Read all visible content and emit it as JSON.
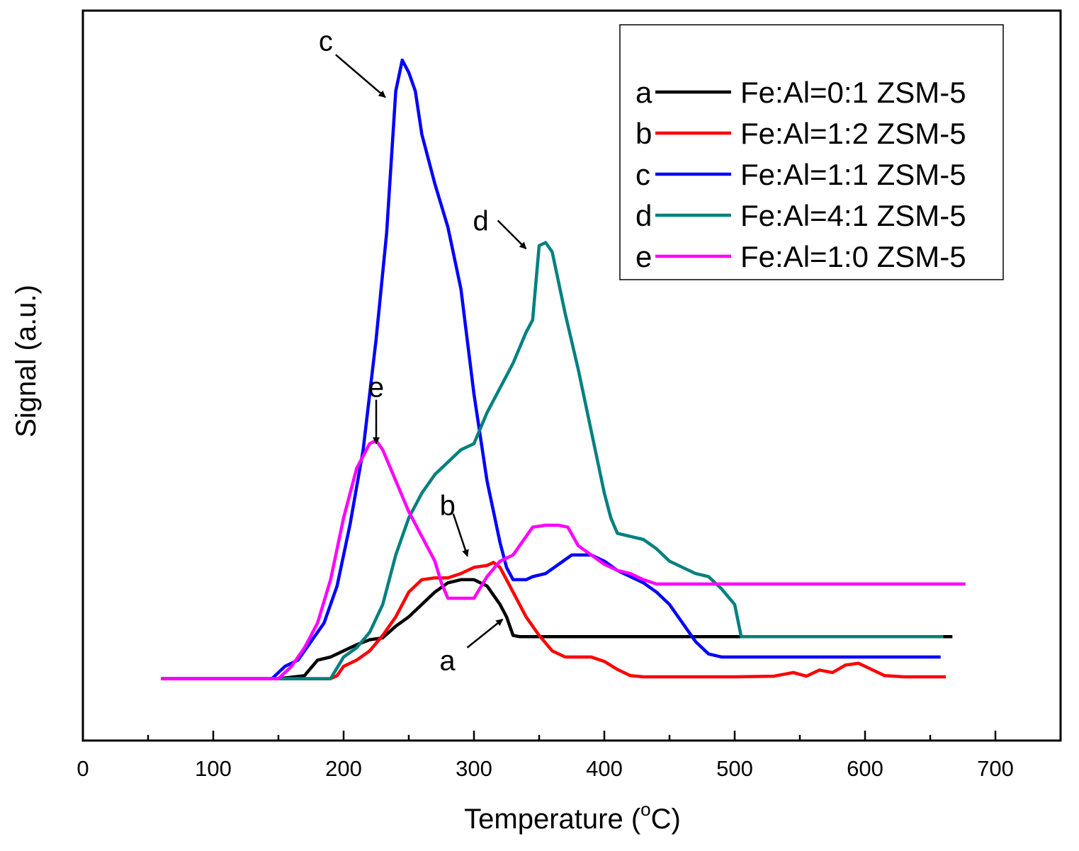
{
  "chart_data": {
    "type": "line",
    "title": "",
    "xlabel": "Temperature (",
    "xlabel_sup": "o",
    "xlabel_unit": "C)",
    "ylabel": "Signal (a.u.)",
    "xlim": [
      0,
      750
    ],
    "ylim": [
      -0.1,
      1.08
    ],
    "xticks": [
      0,
      100,
      200,
      300,
      400,
      500,
      600,
      700
    ],
    "xtick_labels": [
      "0",
      "100",
      "200",
      "300",
      "400",
      "500",
      "600",
      "700"
    ],
    "yticks_shown": false,
    "legend_position": "top-right",
    "series": [
      {
        "key": "a",
        "name": "Fe:Al=0:1 ZSM-5",
        "color": "#000000",
        "points": [
          [
            60,
            0.0
          ],
          [
            150,
            0.0
          ],
          [
            170,
            0.005
          ],
          [
            180,
            0.03
          ],
          [
            190,
            0.035
          ],
          [
            200,
            0.045
          ],
          [
            210,
            0.055
          ],
          [
            220,
            0.063
          ],
          [
            230,
            0.066
          ],
          [
            240,
            0.085
          ],
          [
            250,
            0.1
          ],
          [
            260,
            0.12
          ],
          [
            270,
            0.14
          ],
          [
            280,
            0.155
          ],
          [
            290,
            0.16
          ],
          [
            300,
            0.16
          ],
          [
            310,
            0.15
          ],
          [
            320,
            0.12
          ],
          [
            325,
            0.1
          ],
          [
            330,
            0.07
          ],
          [
            335,
            0.068
          ],
          [
            350,
            0.068
          ],
          [
            400,
            0.068
          ],
          [
            500,
            0.068
          ],
          [
            600,
            0.068
          ],
          [
            667,
            0.068
          ]
        ]
      },
      {
        "key": "b",
        "name": "Fe:Al=1:2 ZSM-5",
        "color": "#ff0000",
        "points": [
          [
            60,
            0.0
          ],
          [
            190,
            0.0
          ],
          [
            195,
            0.005
          ],
          [
            200,
            0.02
          ],
          [
            210,
            0.03
          ],
          [
            220,
            0.045
          ],
          [
            230,
            0.07
          ],
          [
            240,
            0.1
          ],
          [
            250,
            0.14
          ],
          [
            260,
            0.16
          ],
          [
            270,
            0.163
          ],
          [
            280,
            0.163
          ],
          [
            290,
            0.17
          ],
          [
            300,
            0.18
          ],
          [
            310,
            0.183
          ],
          [
            315,
            0.188
          ],
          [
            320,
            0.18
          ],
          [
            325,
            0.16
          ],
          [
            330,
            0.14
          ],
          [
            340,
            0.1
          ],
          [
            350,
            0.07
          ],
          [
            360,
            0.045
          ],
          [
            370,
            0.035
          ],
          [
            380,
            0.035
          ],
          [
            390,
            0.035
          ],
          [
            400,
            0.028
          ],
          [
            410,
            0.015
          ],
          [
            420,
            0.005
          ],
          [
            430,
            0.003
          ],
          [
            450,
            0.003
          ],
          [
            500,
            0.003
          ],
          [
            530,
            0.004
          ],
          [
            545,
            0.01
          ],
          [
            555,
            0.004
          ],
          [
            565,
            0.014
          ],
          [
            575,
            0.01
          ],
          [
            585,
            0.022
          ],
          [
            595,
            0.025
          ],
          [
            605,
            0.015
          ],
          [
            615,
            0.005
          ],
          [
            630,
            0.003
          ],
          [
            662,
            0.003
          ]
        ]
      },
      {
        "key": "c",
        "name": "Fe:Al=1:1 ZSM-5",
        "color": "#0000ff",
        "points": [
          [
            60,
            0.0
          ],
          [
            145,
            0.0
          ],
          [
            155,
            0.02
          ],
          [
            165,
            0.03
          ],
          [
            175,
            0.06
          ],
          [
            185,
            0.09
          ],
          [
            195,
            0.15
          ],
          [
            205,
            0.25
          ],
          [
            215,
            0.37
          ],
          [
            225,
            0.55
          ],
          [
            233,
            0.72
          ],
          [
            240,
            0.95
          ],
          [
            245,
            1.0
          ],
          [
            250,
            0.98
          ],
          [
            255,
            0.95
          ],
          [
            260,
            0.88
          ],
          [
            270,
            0.8
          ],
          [
            280,
            0.73
          ],
          [
            290,
            0.63
          ],
          [
            300,
            0.46
          ],
          [
            310,
            0.32
          ],
          [
            320,
            0.22
          ],
          [
            325,
            0.18
          ],
          [
            330,
            0.16
          ],
          [
            340,
            0.16
          ],
          [
            345,
            0.165
          ],
          [
            355,
            0.17
          ],
          [
            365,
            0.185
          ],
          [
            375,
            0.2
          ],
          [
            380,
            0.2
          ],
          [
            390,
            0.2
          ],
          [
            400,
            0.19
          ],
          [
            410,
            0.175
          ],
          [
            420,
            0.165
          ],
          [
            430,
            0.155
          ],
          [
            440,
            0.14
          ],
          [
            450,
            0.12
          ],
          [
            460,
            0.09
          ],
          [
            470,
            0.06
          ],
          [
            480,
            0.04
          ],
          [
            490,
            0.035
          ],
          [
            550,
            0.035
          ],
          [
            658,
            0.035
          ]
        ]
      },
      {
        "key": "d",
        "name": "Fe:Al=4:1 ZSM-5",
        "color": "#008080",
        "points": [
          [
            60,
            0.0
          ],
          [
            190,
            0.0
          ],
          [
            200,
            0.035
          ],
          [
            210,
            0.05
          ],
          [
            220,
            0.075
          ],
          [
            230,
            0.12
          ],
          [
            240,
            0.2
          ],
          [
            250,
            0.26
          ],
          [
            260,
            0.3
          ],
          [
            270,
            0.33
          ],
          [
            280,
            0.35
          ],
          [
            290,
            0.37
          ],
          [
            300,
            0.38
          ],
          [
            310,
            0.43
          ],
          [
            320,
            0.47
          ],
          [
            330,
            0.51
          ],
          [
            340,
            0.56
          ],
          [
            345,
            0.58
          ],
          [
            350,
            0.7
          ],
          [
            355,
            0.705
          ],
          [
            360,
            0.69
          ],
          [
            365,
            0.64
          ],
          [
            370,
            0.59
          ],
          [
            380,
            0.5
          ],
          [
            390,
            0.4
          ],
          [
            400,
            0.3
          ],
          [
            405,
            0.26
          ],
          [
            410,
            0.235
          ],
          [
            420,
            0.23
          ],
          [
            430,
            0.225
          ],
          [
            440,
            0.21
          ],
          [
            450,
            0.19
          ],
          [
            460,
            0.18
          ],
          [
            470,
            0.17
          ],
          [
            480,
            0.165
          ],
          [
            490,
            0.145
          ],
          [
            500,
            0.12
          ],
          [
            505,
            0.068
          ],
          [
            550,
            0.068
          ],
          [
            600,
            0.068
          ],
          [
            660,
            0.068
          ]
        ]
      },
      {
        "key": "e",
        "name": "Fe:Al=1:0 ZSM-5",
        "color": "#ff00ff",
        "points": [
          [
            60,
            0.0
          ],
          [
            150,
            0.0
          ],
          [
            160,
            0.02
          ],
          [
            170,
            0.05
          ],
          [
            180,
            0.09
          ],
          [
            190,
            0.16
          ],
          [
            200,
            0.26
          ],
          [
            210,
            0.34
          ],
          [
            220,
            0.38
          ],
          [
            225,
            0.385
          ],
          [
            230,
            0.37
          ],
          [
            240,
            0.32
          ],
          [
            250,
            0.27
          ],
          [
            260,
            0.23
          ],
          [
            270,
            0.19
          ],
          [
            275,
            0.155
          ],
          [
            280,
            0.13
          ],
          [
            290,
            0.13
          ],
          [
            300,
            0.13
          ],
          [
            310,
            0.165
          ],
          [
            320,
            0.19
          ],
          [
            330,
            0.2
          ],
          [
            340,
            0.23
          ],
          [
            345,
            0.245
          ],
          [
            355,
            0.248
          ],
          [
            365,
            0.248
          ],
          [
            372,
            0.245
          ],
          [
            380,
            0.215
          ],
          [
            390,
            0.2
          ],
          [
            400,
            0.185
          ],
          [
            410,
            0.175
          ],
          [
            420,
            0.17
          ],
          [
            430,
            0.16
          ],
          [
            440,
            0.153
          ],
          [
            500,
            0.153
          ],
          [
            600,
            0.153
          ],
          [
            677,
            0.153
          ]
        ]
      }
    ],
    "annotations": [
      {
        "label": "c",
        "x": 232,
        "y": 0.94
      },
      {
        "label": "d",
        "x": 340,
        "y": 0.695
      },
      {
        "label": "e",
        "x": 225,
        "y": 0.38
      },
      {
        "label": "b",
        "x": 295,
        "y": 0.198
      },
      {
        "label": "a",
        "x": 322,
        "y": 0.096
      }
    ]
  }
}
